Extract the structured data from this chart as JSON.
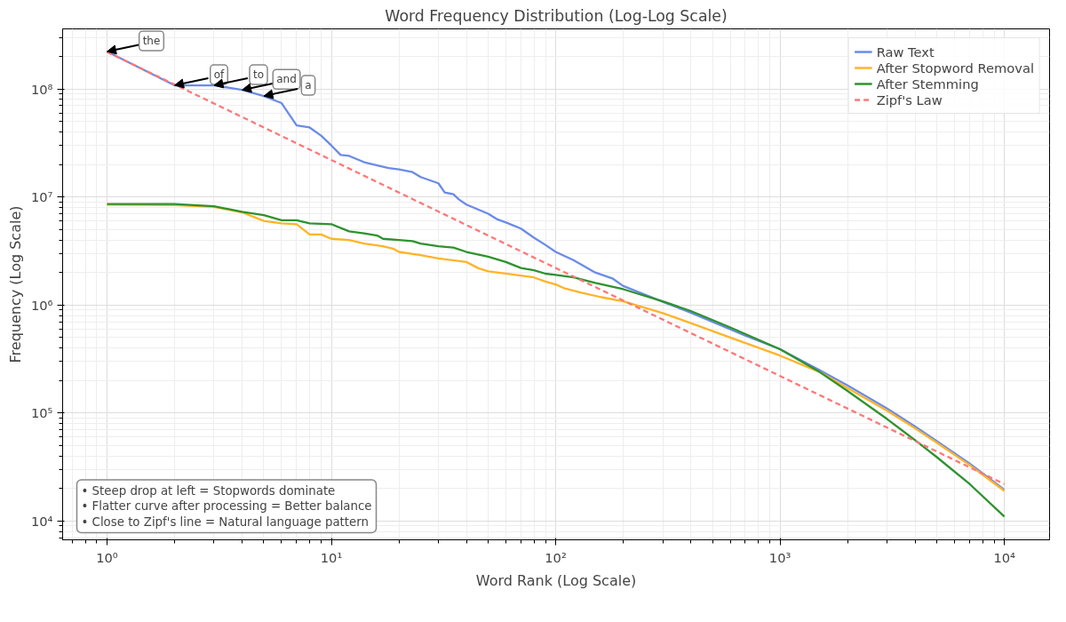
{
  "chart_data": {
    "type": "line",
    "title": "Word Frequency Distribution (Log-Log Scale)",
    "xlabel": "Word Rank (Log Scale)",
    "ylabel": "Frequency (Log Scale)",
    "log": "xy",
    "grid": true,
    "legend": "top right",
    "line_style": "solid",
    "xlim": [
      0.634,
      15900
    ],
    "ylim": [
      6700,
      360000000
    ],
    "xticks": [
      {
        "value": 1,
        "label": "10⁰"
      },
      {
        "value": 10,
        "label": "10¹"
      },
      {
        "value": 100,
        "label": "10²"
      },
      {
        "value": 1000,
        "label": "10³"
      },
      {
        "value": 10000,
        "label": "10⁴"
      }
    ],
    "yticks": [
      {
        "value": 10000,
        "label": "10⁴"
      },
      {
        "value": 100000,
        "label": "10⁵"
      },
      {
        "value": 1000000,
        "label": "10⁶"
      },
      {
        "value": 10000000,
        "label": "10⁷"
      },
      {
        "value": 100000000,
        "label": "10⁸"
      }
    ],
    "series": [
      {
        "name": "Raw Text",
        "color": "#6a8be8",
        "x": [
          1,
          2,
          3,
          4,
          5,
          6,
          7,
          8,
          9,
          10,
          11,
          12,
          14,
          16,
          18,
          20,
          23,
          25,
          30,
          32,
          35,
          37,
          40,
          50,
          55,
          60,
          70,
          80,
          90,
          100,
          120,
          150,
          180,
          200,
          250,
          300,
          400,
          500,
          700,
          1000,
          1500,
          2000,
          3000,
          4000,
          5000,
          7000,
          10000
        ],
        "values": [
          222000000,
          108000000,
          108000000,
          98000000,
          86000000,
          74000000,
          46000000,
          44000000,
          37000000,
          30000000,
          24500000,
          24000000,
          21000000,
          19600000,
          18500000,
          18000000,
          17000000,
          15300000,
          13400000,
          11000000,
          10600000,
          9500000,
          8500000,
          7000000,
          6200000,
          5800000,
          5100000,
          4200000,
          3600000,
          3100000,
          2600000,
          2000000,
          1750000,
          1500000,
          1250000,
          1070000,
          850000,
          700000,
          520000,
          390000,
          250000,
          180000,
          110000,
          75000,
          55000,
          34000,
          19500
        ]
      },
      {
        "name": "After Stopword Removal",
        "color": "#ffb428",
        "x": [
          1,
          2,
          3,
          4,
          5,
          6,
          7,
          8,
          9,
          10,
          12,
          14,
          17,
          19,
          20,
          25,
          30,
          40,
          45,
          50,
          60,
          80,
          90,
          100,
          110,
          130,
          160,
          200,
          300,
          400,
          600,
          1000,
          1500,
          2000,
          3000,
          4000,
          5000,
          7000,
          10000
        ],
        "values": [
          8500000,
          8400000,
          8100000,
          7200000,
          6000000,
          5700000,
          5600000,
          4500000,
          4500000,
          4100000,
          4000000,
          3700000,
          3500000,
          3300000,
          3100000,
          2900000,
          2700000,
          2500000,
          2200000,
          2050000,
          1950000,
          1800000,
          1650000,
          1550000,
          1420000,
          1300000,
          1180000,
          1080000,
          840000,
          680000,
          500000,
          340000,
          240000,
          170000,
          105000,
          72000,
          53000,
          33000,
          19000
        ]
      },
      {
        "name": "After Stemming",
        "color": "#2e922e",
        "x": [
          1,
          2,
          3,
          4,
          5,
          6,
          7,
          8,
          10,
          12,
          14,
          16,
          17,
          20,
          23,
          25,
          30,
          35,
          40,
          50,
          60,
          70,
          80,
          90,
          100,
          120,
          150,
          200,
          300,
          400,
          600,
          1000,
          1500,
          2000,
          3000,
          4000,
          5000,
          7000,
          10000
        ],
        "values": [
          8600000,
          8600000,
          8200000,
          7300000,
          6800000,
          6100000,
          6100000,
          5700000,
          5600000,
          4800000,
          4600000,
          4400000,
          4100000,
          4000000,
          3900000,
          3700000,
          3500000,
          3400000,
          3100000,
          2800000,
          2500000,
          2200000,
          2100000,
          1950000,
          1900000,
          1800000,
          1600000,
          1400000,
          1080000,
          880000,
          620000,
          390000,
          240000,
          160000,
          88000,
          56000,
          39000,
          22000,
          11000
        ]
      },
      {
        "name": "Zipf's Law",
        "color": "#ff7878",
        "line_style": "dashed",
        "x": [
          1,
          10000
        ],
        "values": [
          220000000,
          22000
        ]
      }
    ],
    "annotations": [
      {
        "text": "the",
        "x": 1,
        "y": 222000000
      },
      {
        "text": "of",
        "x": 2,
        "y": 108000000
      },
      {
        "text": "to",
        "x": 3,
        "y": 108000000
      },
      {
        "text": "and",
        "x": 4,
        "y": 98000000
      },
      {
        "text": "a",
        "x": 5,
        "y": 86000000
      },
      "• Steep drop at left = Stopwords dominate\n• Flatter curve after processing = Better balance\n• Close to Zipf's line = Natural language pattern"
    ]
  }
}
